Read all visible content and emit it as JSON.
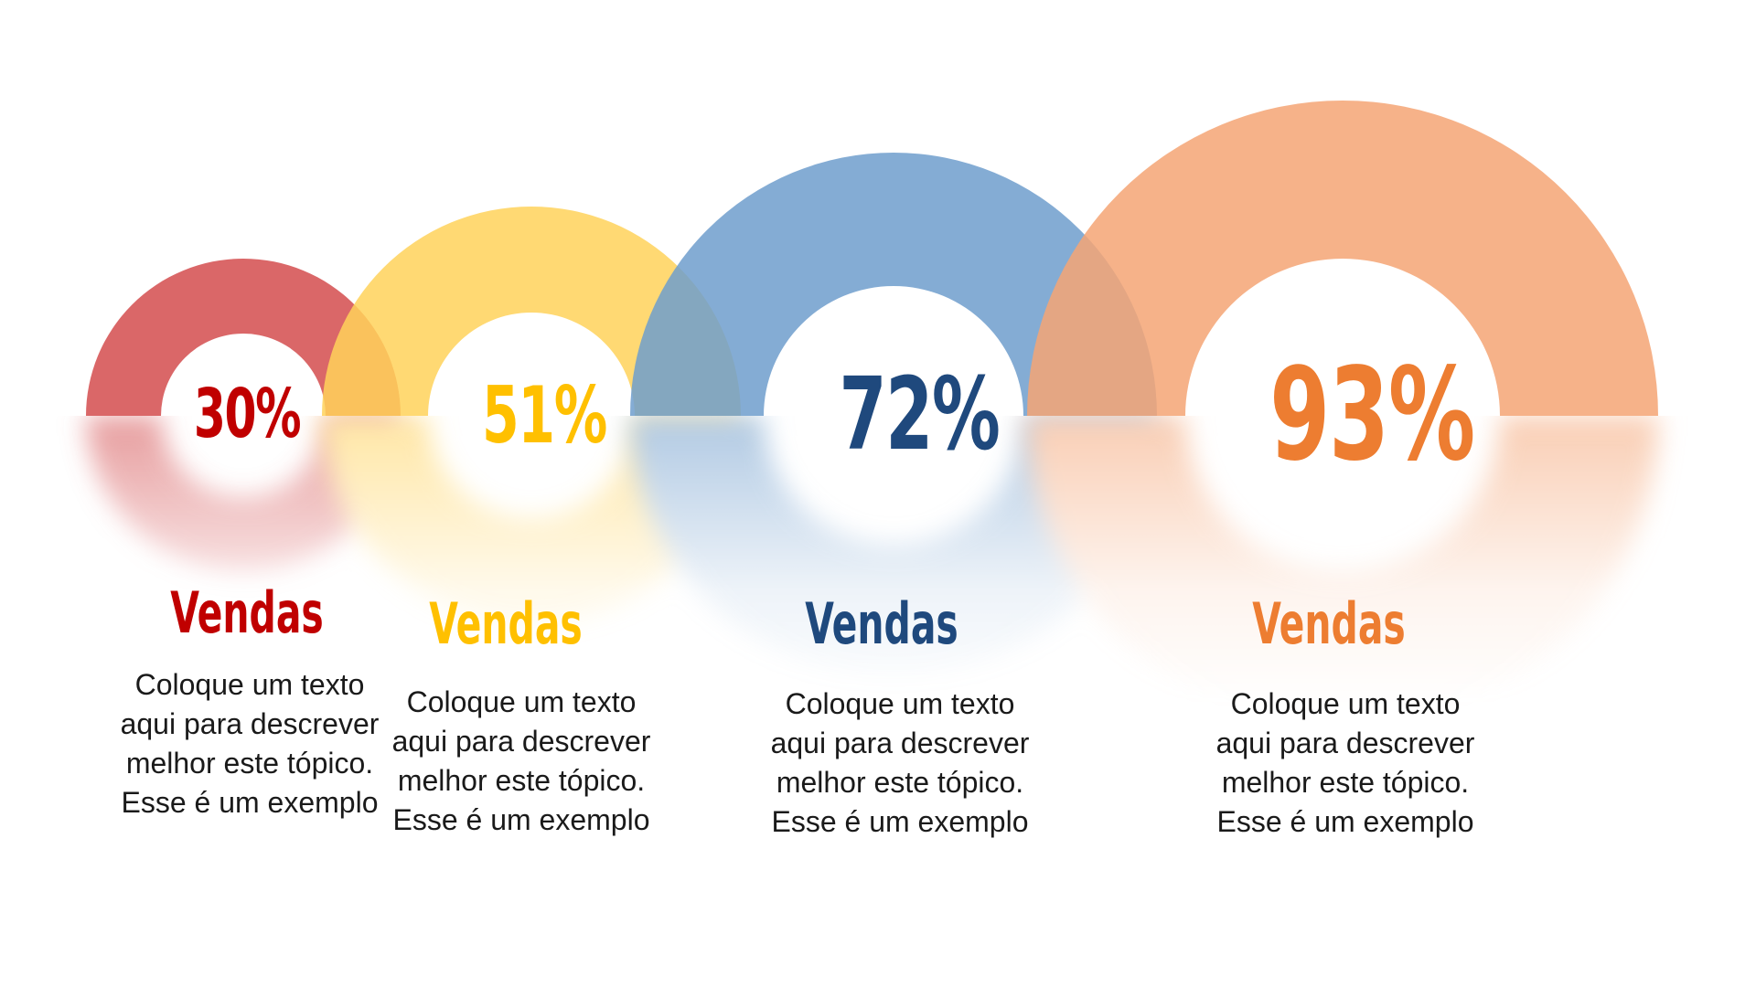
{
  "items": [
    {
      "percent": "30%",
      "value": 30,
      "title": "Vendas",
      "description": "Coloque um texto aqui para descrever melhor este tópico. Esse é um exemplo",
      "color": "#d34c4e",
      "text_color": "#c00000"
    },
    {
      "percent": "51%",
      "value": 51,
      "title": "Vendas",
      "description": "Coloque um texto aqui para descrever melhor este tópico. Esse é um exemplo",
      "color": "#ffd25a",
      "text_color": "#ffc000"
    },
    {
      "percent": "72%",
      "value": 72,
      "title": "Vendas",
      "description": "Coloque um texto aqui para descrever melhor este tópico. Esse é um exemplo",
      "color": "#6f9dcc",
      "text_color": "#1f497d"
    },
    {
      "percent": "93%",
      "value": 93,
      "title": "Vendas",
      "description": "Coloque um texto aqui para descrever melhor este tópico. Esse é um exemplo",
      "color": "#f4a474",
      "text_color": "#ed7d31"
    }
  ]
}
